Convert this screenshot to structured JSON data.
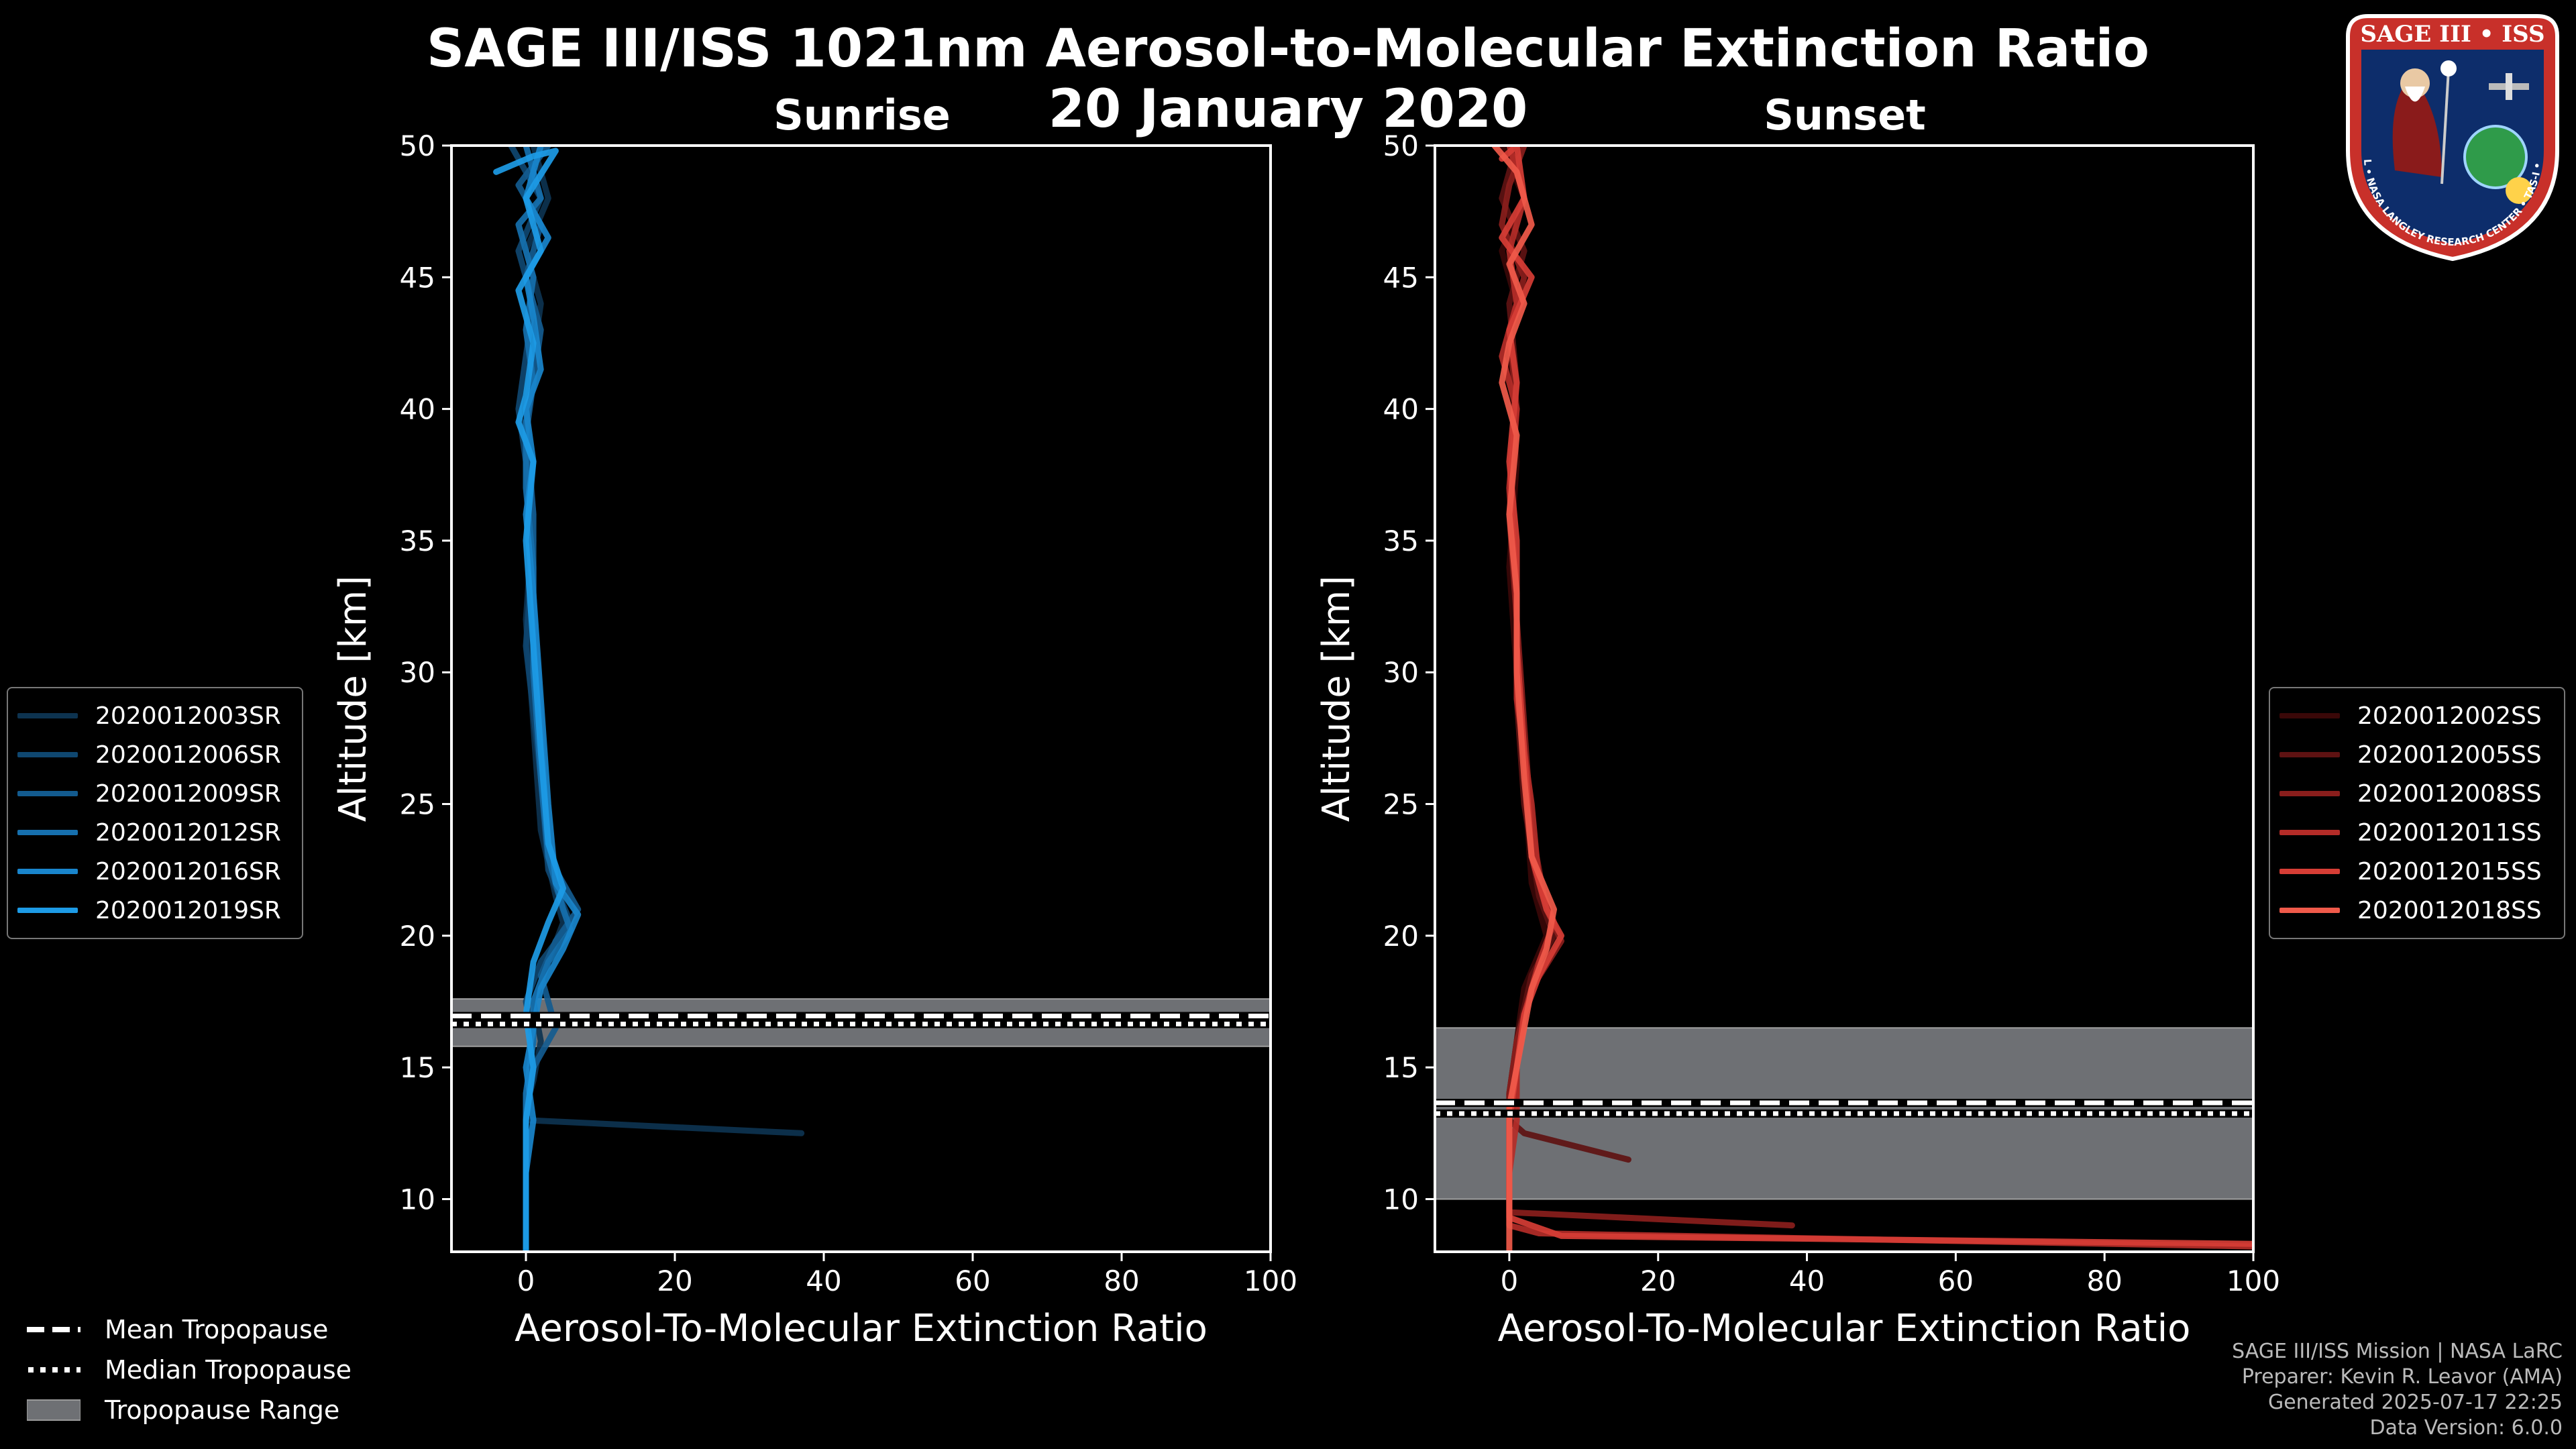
{
  "title_line1": "SAGE III/ISS 1021nm Aerosol-to-Molecular Extinction Ratio",
  "title_line2": "20 January 2020",
  "footer": {
    "line1": "SAGE III/ISS Mission | NASA LaRC",
    "line2": "Preparer: Kevin R. Leavor (AMA)",
    "line3": "Generated 2025-07-17 22:25",
    "line4": "Data Version: 6.0.0"
  },
  "logo": {
    "title": "SAGE III • ISS",
    "ring_text": "BALL • NASA LANGLEY RESEARCH CENTER • TAS-I • ESA"
  },
  "bottom_legend": {
    "mean": "Mean Tropopause",
    "median": "Median Tropopause",
    "range": "Tropopause Range"
  },
  "chart_data": [
    {
      "type": "line",
      "title": "Sunrise",
      "xlabel": "Aerosol-To-Molecular Extinction Ratio",
      "ylabel": "Altitude [km]",
      "xlim": [
        -10,
        100
      ],
      "ylim": [
        8,
        50
      ],
      "xticks": [
        "0",
        "20",
        "40",
        "60",
        "80",
        "100"
      ],
      "yticks": [
        "10",
        "15",
        "20",
        "25",
        "30",
        "35",
        "40",
        "45",
        "50"
      ],
      "tropopause": {
        "mean": 16.8,
        "median": 16.8,
        "range": [
          15.8,
          17.6
        ]
      },
      "series": [
        {
          "name": "2020012003SR",
          "color": "#0d3350",
          "points": [
            [
              1,
              50
            ],
            [
              3,
              48
            ],
            [
              0,
              46
            ],
            [
              2,
              44
            ],
            [
              1,
              42
            ],
            [
              0,
              40
            ],
            [
              1,
              36
            ],
            [
              0,
              32
            ],
            [
              1,
              28
            ],
            [
              2,
              24
            ],
            [
              4,
              21.5
            ],
            [
              5,
              20.5
            ],
            [
              3,
              19
            ],
            [
              1,
              17.5
            ],
            [
              2,
              16
            ],
            [
              1,
              14.5
            ],
            [
              0,
              13.5
            ],
            [
              0,
              13
            ],
            [
              37,
              12.5
            ]
          ]
        },
        {
          "name": "2020012006SR",
          "color": "#0f4770",
          "points": [
            [
              -2,
              50
            ],
            [
              2,
              48
            ],
            [
              -1,
              46
            ],
            [
              1,
              44
            ],
            [
              0,
              42
            ],
            [
              -1,
              40
            ],
            [
              0,
              38
            ],
            [
              1,
              35
            ],
            [
              0,
              31
            ],
            [
              2,
              26
            ],
            [
              3,
              22.5
            ],
            [
              6,
              20.5
            ],
            [
              2,
              19
            ],
            [
              0,
              17.5
            ],
            [
              1,
              16
            ],
            [
              0,
              14
            ],
            [
              0,
              12
            ],
            [
              0,
              10
            ],
            [
              0,
              8
            ]
          ]
        },
        {
          "name": "2020012009SR",
          "color": "#135b8f",
          "points": [
            [
              3,
              50
            ],
            [
              -1,
              48.5
            ],
            [
              2,
              47
            ],
            [
              0,
              45
            ],
            [
              2,
              43
            ],
            [
              1,
              41
            ],
            [
              0,
              39
            ],
            [
              1,
              36
            ],
            [
              1,
              33
            ],
            [
              2,
              28
            ],
            [
              3,
              23
            ],
            [
              7,
              21
            ],
            [
              4,
              19.8
            ],
            [
              2,
              18.5
            ],
            [
              3,
              17.5
            ],
            [
              4,
              16.5
            ],
            [
              1,
              15
            ],
            [
              0,
              13
            ],
            [
              0,
              11
            ],
            [
              0,
              9
            ],
            [
              0,
              8
            ]
          ]
        },
        {
          "name": "2020012012SR",
          "color": "#1670ae",
          "points": [
            [
              0,
              50
            ],
            [
              2,
              48
            ],
            [
              -1,
              47
            ],
            [
              1,
              45
            ],
            [
              0,
              43
            ],
            [
              1,
              41
            ],
            [
              0,
              39.5
            ],
            [
              0,
              37
            ],
            [
              1,
              34
            ],
            [
              1,
              30
            ],
            [
              2,
              26
            ],
            [
              3,
              23
            ],
            [
              5,
              21
            ],
            [
              6,
              20.2
            ],
            [
              3,
              19
            ],
            [
              1,
              17.5
            ],
            [
              1,
              16
            ],
            [
              0,
              14
            ],
            [
              0,
              12
            ],
            [
              0,
              10
            ],
            [
              0,
              8
            ]
          ]
        },
        {
          "name": "2020012016SR",
          "color": "#1985cc",
          "points": [
            [
              2,
              50
            ],
            [
              0,
              48
            ],
            [
              3,
              46.5
            ],
            [
              0,
              45
            ],
            [
              1,
              43.5
            ],
            [
              2,
              41.5
            ],
            [
              0,
              40
            ],
            [
              1,
              38
            ],
            [
              0,
              36
            ],
            [
              1,
              33
            ],
            [
              2,
              29
            ],
            [
              3,
              25
            ],
            [
              4,
              22
            ],
            [
              7,
              20.8
            ],
            [
              5,
              19.5
            ],
            [
              2,
              18
            ],
            [
              1,
              16.5
            ],
            [
              0,
              15
            ],
            [
              1,
              13
            ],
            [
              0,
              11
            ],
            [
              0,
              9
            ],
            [
              0,
              8
            ]
          ]
        },
        {
          "name": "2020012019SR",
          "color": "#1d9be6",
          "points": [
            [
              -4,
              49
            ],
            [
              1,
              49.6
            ],
            [
              4,
              49.8
            ],
            [
              0,
              48
            ],
            [
              2,
              46
            ],
            [
              -1,
              44.5
            ],
            [
              1,
              42.5
            ],
            [
              0,
              40.5
            ],
            [
              -1,
              39.5
            ],
            [
              1,
              38
            ],
            [
              0,
              35
            ],
            [
              1,
              31
            ],
            [
              2,
              27
            ],
            [
              3,
              23.5
            ],
            [
              5,
              21.8
            ],
            [
              3,
              20.5
            ],
            [
              1,
              19
            ],
            [
              0,
              17
            ],
            [
              1,
              15
            ],
            [
              0,
              13
            ],
            [
              0,
              11
            ],
            [
              0,
              9
            ],
            [
              0,
              8
            ]
          ]
        }
      ]
    },
    {
      "type": "line",
      "title": "Sunset",
      "xlabel": "Aerosol-To-Molecular Extinction Ratio",
      "ylabel": "Altitude [km]",
      "xlim": [
        -10,
        100
      ],
      "ylim": [
        8,
        50
      ],
      "xticks": [
        "0",
        "20",
        "40",
        "60",
        "80",
        "100"
      ],
      "yticks": [
        "10",
        "15",
        "20",
        "25",
        "30",
        "35",
        "40",
        "45",
        "50"
      ],
      "tropopause": {
        "mean": 13.5,
        "median": 13.4,
        "range": [
          10.0,
          16.5
        ]
      },
      "series": [
        {
          "name": "2020012002SS",
          "color": "#3a0808",
          "points": [
            [
              -1,
              50
            ],
            [
              2,
              48
            ],
            [
              -1,
              46
            ],
            [
              1,
              44
            ],
            [
              0,
              42
            ],
            [
              1,
              38
            ],
            [
              0,
              34
            ],
            [
              1,
              30
            ],
            [
              2,
              26
            ],
            [
              3,
              22
            ],
            [
              5,
              20
            ],
            [
              2,
              18
            ],
            [
              1,
              16
            ],
            [
              0,
              14
            ],
            [
              0,
              12
            ],
            [
              0,
              10
            ],
            [
              0,
              9
            ]
          ]
        },
        {
          "name": "2020012005SS",
          "color": "#5e1212",
          "points": [
            [
              1,
              50
            ],
            [
              -1,
              48
            ],
            [
              2,
              46
            ],
            [
              0,
              44
            ],
            [
              1,
              41
            ],
            [
              0,
              37
            ],
            [
              1,
              33
            ],
            [
              1,
              29
            ],
            [
              2,
              25
            ],
            [
              4,
              21.5
            ],
            [
              6,
              20
            ],
            [
              3,
              18.5
            ],
            [
              1,
              16
            ],
            [
              1,
              14
            ],
            [
              0,
              13
            ],
            [
              2,
              12.5
            ],
            [
              16,
              11.5
            ]
          ]
        },
        {
          "name": "2020012008SS",
          "color": "#8a1e1c",
          "points": [
            [
              2,
              50
            ],
            [
              0,
              48.5
            ],
            [
              -1,
              47
            ],
            [
              2,
              45
            ],
            [
              0,
              43
            ],
            [
              1,
              40
            ],
            [
              0,
              36
            ],
            [
              1,
              32
            ],
            [
              2,
              28
            ],
            [
              3,
              24
            ],
            [
              5,
              21
            ],
            [
              7,
              19.8
            ],
            [
              3,
              18
            ],
            [
              1,
              16
            ],
            [
              0,
              14
            ],
            [
              0,
              12
            ],
            [
              0,
              10
            ],
            [
              0,
              9.5
            ],
            [
              38,
              9
            ]
          ]
        },
        {
          "name": "2020012011SS",
          "color": "#b42c28",
          "points": [
            [
              0,
              50
            ],
            [
              2,
              48
            ],
            [
              0,
              46
            ],
            [
              1,
              44
            ],
            [
              -1,
              42
            ],
            [
              1,
              40
            ],
            [
              0,
              37
            ],
            [
              1,
              33
            ],
            [
              1,
              29
            ],
            [
              3,
              25
            ],
            [
              4,
              22
            ],
            [
              6,
              20.5
            ],
            [
              4,
              19
            ],
            [
              2,
              17
            ],
            [
              1,
              15
            ],
            [
              1,
              13
            ],
            [
              0,
              11
            ],
            [
              0,
              9
            ],
            [
              4,
              8.7
            ],
            [
              100,
              8.2
            ]
          ]
        },
        {
          "name": "2020012015SS",
          "color": "#d63d35",
          "points": [
            [
              -1,
              49.5
            ],
            [
              1,
              50
            ],
            [
              2,
              48
            ],
            [
              -1,
              46.5
            ],
            [
              3,
              45
            ],
            [
              0,
              43
            ],
            [
              1,
              41
            ],
            [
              0,
              38
            ],
            [
              1,
              35
            ],
            [
              1,
              31
            ],
            [
              2,
              27
            ],
            [
              3,
              23
            ],
            [
              5,
              21
            ],
            [
              7,
              20
            ],
            [
              4,
              18.5
            ],
            [
              2,
              17
            ],
            [
              1,
              15
            ],
            [
              0,
              13
            ],
            [
              0,
              11
            ],
            [
              0,
              9.3
            ],
            [
              7,
              8.6
            ],
            [
              100,
              8.3
            ]
          ]
        },
        {
          "name": "2020012018SS",
          "color": "#f05a4a",
          "points": [
            [
              -2,
              50
            ],
            [
              1,
              49
            ],
            [
              3,
              47
            ],
            [
              0,
              45.5
            ],
            [
              2,
              44
            ],
            [
              0,
              42.5
            ],
            [
              -1,
              41
            ],
            [
              1,
              39
            ],
            [
              0,
              36
            ],
            [
              1,
              33
            ],
            [
              1,
              30
            ],
            [
              2,
              26
            ],
            [
              3,
              23
            ],
            [
              6,
              21
            ],
            [
              5,
              19.5
            ],
            [
              3,
              18
            ],
            [
              2,
              16.5
            ],
            [
              1,
              15
            ],
            [
              0,
              13.5
            ],
            [
              0,
              12
            ],
            [
              0,
              10.5
            ],
            [
              0,
              9.5
            ],
            [
              0,
              8
            ]
          ]
        }
      ]
    }
  ]
}
